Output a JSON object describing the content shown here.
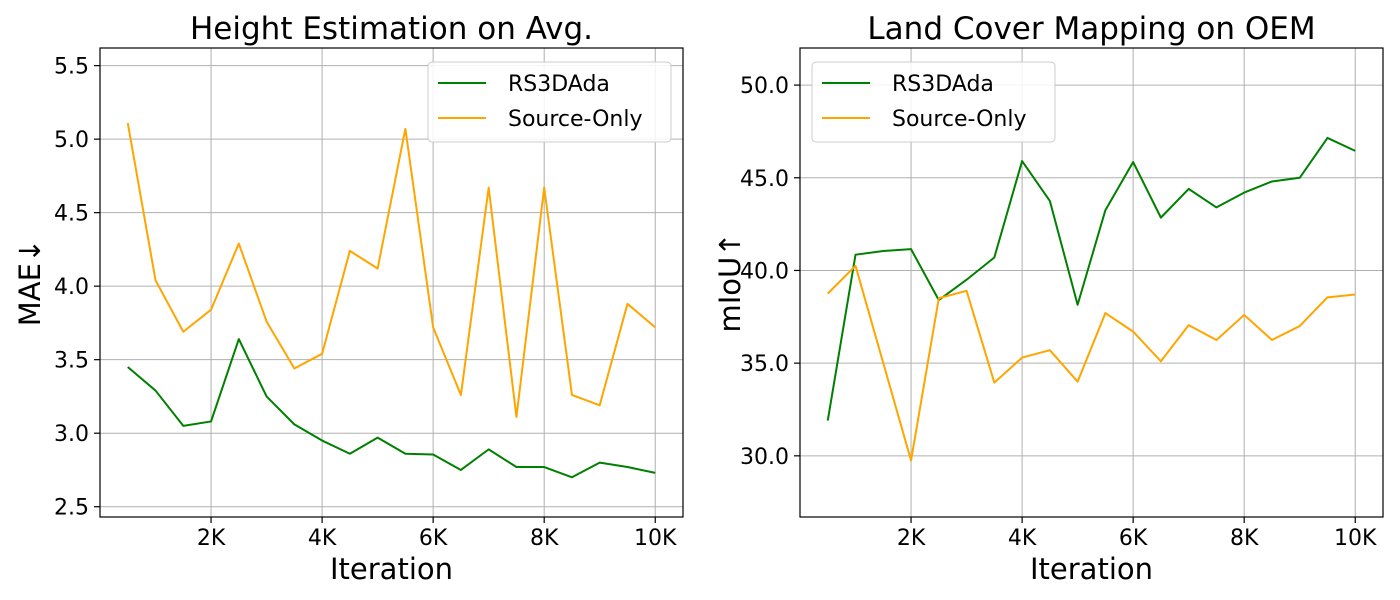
{
  "chart_data": [
    {
      "type": "line",
      "title": "Height Estimation on Avg.",
      "xlabel": "Iteration",
      "ylabel": "MAE↓",
      "xlim": [
        0,
        10500
      ],
      "ylim": [
        2.43,
        5.62
      ],
      "xticks": [
        2000,
        4000,
        6000,
        8000,
        10000
      ],
      "xtick_labels": [
        "2K",
        "4K",
        "6K",
        "8K",
        "10K"
      ],
      "yticks": [
        2.5,
        3.0,
        3.5,
        4.0,
        4.5,
        5.0,
        5.5
      ],
      "ytick_labels": [
        "2.5",
        "3.0",
        "3.5",
        "4.0",
        "4.5",
        "5.0",
        "5.5"
      ],
      "grid": true,
      "legend": "upper right",
      "x": [
        500,
        1000,
        1500,
        2000,
        2500,
        3000,
        3500,
        4000,
        4500,
        5000,
        5500,
        6000,
        6500,
        7000,
        7500,
        8000,
        8500,
        9000,
        9500,
        10000
      ],
      "series": [
        {
          "name": "RS3DAda",
          "color": "#008000",
          "values": [
            3.45,
            3.29,
            3.05,
            3.08,
            3.64,
            3.25,
            3.06,
            2.95,
            2.86,
            2.97,
            2.86,
            2.855,
            2.75,
            2.89,
            2.77,
            2.77,
            2.7,
            2.8,
            2.77,
            2.73
          ]
        },
        {
          "name": "Source-Only",
          "color": "#FFA500",
          "values": [
            5.11,
            4.04,
            3.69,
            3.84,
            4.29,
            3.76,
            3.44,
            3.54,
            4.24,
            4.12,
            5.07,
            3.72,
            3.26,
            4.67,
            3.11,
            4.67,
            3.26,
            3.19,
            3.88,
            3.72
          ]
        }
      ]
    },
    {
      "type": "line",
      "title": "Land Cover Mapping on OEM",
      "xlabel": "Iteration",
      "ylabel": "mIoU↑",
      "xlim": [
        0,
        10500
      ],
      "ylim": [
        26.7,
        52.0
      ],
      "xticks": [
        2000,
        4000,
        6000,
        8000,
        10000
      ],
      "xtick_labels": [
        "2K",
        "4K",
        "6K",
        "8K",
        "10K"
      ],
      "yticks": [
        30.0,
        35.0,
        40.0,
        45.0,
        50.0
      ],
      "ytick_labels": [
        "30.0",
        "35.0",
        "40.0",
        "45.0",
        "50.0"
      ],
      "grid": true,
      "legend": "upper left",
      "x": [
        500,
        1000,
        1500,
        2000,
        2500,
        3000,
        3500,
        4000,
        4500,
        5000,
        5500,
        6000,
        6500,
        7000,
        7500,
        8000,
        8500,
        9000,
        9500,
        10000
      ],
      "series": [
        {
          "name": "RS3DAda",
          "color": "#008000",
          "values": [
            31.9,
            40.85,
            41.05,
            41.15,
            38.4,
            39.5,
            40.7,
            45.9,
            43.75,
            38.15,
            43.25,
            45.85,
            42.85,
            44.4,
            43.4,
            44.2,
            44.8,
            45.0,
            47.15,
            46.45
          ]
        },
        {
          "name": "Source-Only",
          "color": "#FFA500",
          "values": [
            38.75,
            40.25,
            35.0,
            29.75,
            38.5,
            38.9,
            33.95,
            35.3,
            35.7,
            34.0,
            37.7,
            36.7,
            35.1,
            37.05,
            36.25,
            37.6,
            36.25,
            37.0,
            38.55,
            38.7
          ]
        }
      ]
    }
  ]
}
